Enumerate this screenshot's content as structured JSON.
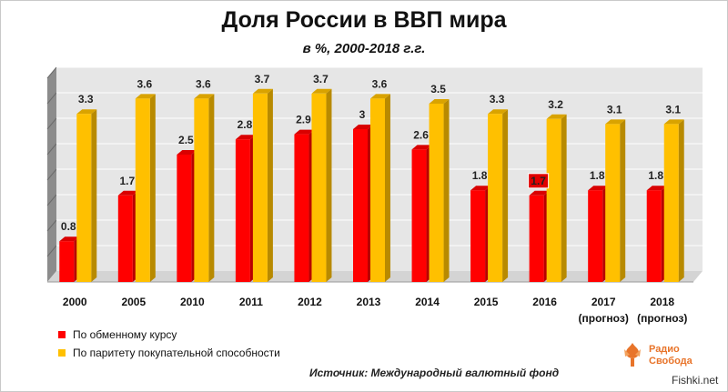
{
  "title": "Доля России в ВВП мира",
  "subtitle": "в %, 2000-2018 г.г.",
  "source": "Источник:  Международный валютный фонд",
  "logo": {
    "line1": "Радио",
    "line2": "Свобода"
  },
  "watermark": "Fishki.net",
  "colors": {
    "market": "#ff0000",
    "ppp": "#ffc000",
    "highlight_bg": "#e00000",
    "wall": "#e6e6e6"
  },
  "chart_data": {
    "type": "bar",
    "categories": [
      "2000",
      "2005",
      "2010",
      "2011",
      "2012",
      "2013",
      "2014",
      "2015",
      "2016",
      "2017\n(прогноз)",
      "2018\n(прогноз)"
    ],
    "series": [
      {
        "name": "По обменному курсу",
        "values": [
          0.8,
          1.7,
          2.5,
          2.8,
          2.9,
          3,
          2.6,
          1.8,
          1.7,
          1.8,
          1.8
        ]
      },
      {
        "name": "По паритету покупательной способности",
        "values": [
          3.3,
          3.6,
          3.6,
          3.7,
          3.7,
          3.6,
          3.5,
          3.3,
          3.2,
          3.1,
          3.1
        ]
      }
    ],
    "highlighted_label": {
      "series": 0,
      "category": "2016"
    },
    "ylim": [
      0,
      4
    ],
    "grid": true,
    "legend": "bottom-left",
    "style": "3d"
  }
}
